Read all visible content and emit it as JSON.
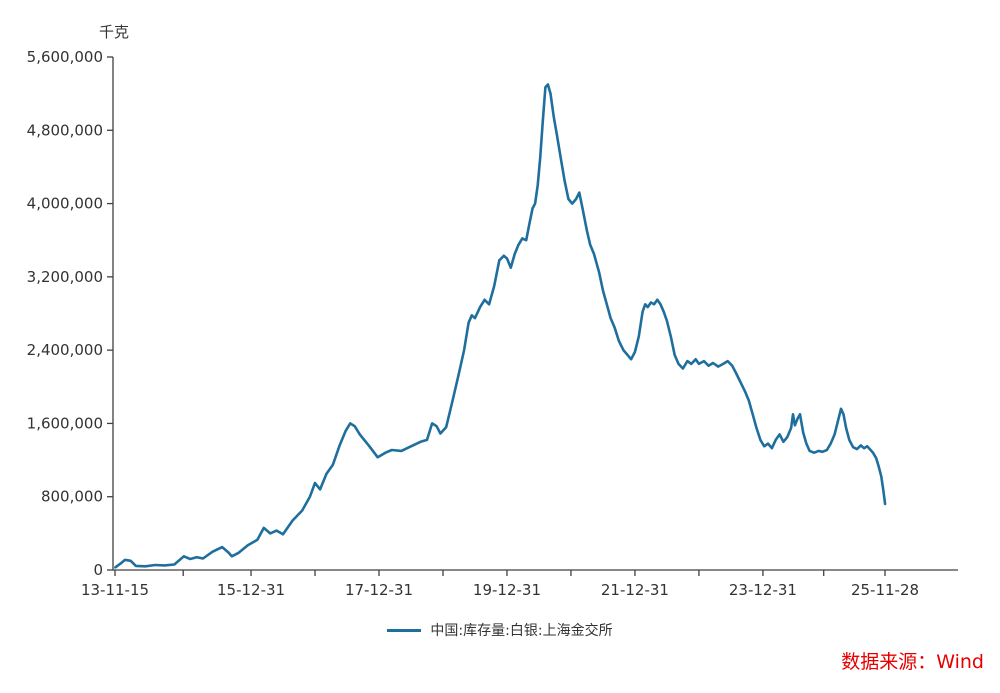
{
  "page": {
    "background": "#ffffff"
  },
  "source_note": {
    "text": "数据来源：Wind",
    "color": "#e60000"
  },
  "chart_data": {
    "type": "line",
    "title": "",
    "unit_label": "千克",
    "grid": false,
    "legend_position": "bottom-center",
    "axis_color": "#404040",
    "tick_label_color": "#333333",
    "ylim": [
      0,
      5600000
    ],
    "xlim": [
      2013.874,
      2025.908
    ],
    "y_ticks": [
      0,
      800000,
      1600000,
      2400000,
      3200000,
      4000000,
      4800000,
      5600000
    ],
    "y_tick_labels": [
      "0",
      "800,000",
      "1,600,000",
      "2,400,000",
      "3,200,000",
      "4,000,000",
      "4,800,000",
      "5,600,000"
    ],
    "x_ticks": [
      {
        "t": 2013.874,
        "label": "13-11-15"
      },
      {
        "t": 2016.0,
        "label": "15-12-31"
      },
      {
        "t": 2018.0,
        "label": "17-12-31"
      },
      {
        "t": 2020.0,
        "label": "19-12-31"
      },
      {
        "t": 2022.0,
        "label": "21-12-31"
      },
      {
        "t": 2024.0,
        "label": "23-12-31"
      },
      {
        "t": 2025.908,
        "label": "25-11-28"
      }
    ],
    "x_minor_ticks": [
      2014.94,
      2017.0,
      2019.0,
      2021.0,
      2023.0,
      2024.95
    ],
    "series": [
      {
        "name": "中国:库存量:白银:上海金交所",
        "color": "#1f6f9e",
        "points": [
          [
            2013.88,
            30000
          ],
          [
            2013.96,
            70000
          ],
          [
            2014.03,
            110000
          ],
          [
            2014.12,
            100000
          ],
          [
            2014.2,
            45000
          ],
          [
            2014.35,
            40000
          ],
          [
            2014.5,
            55000
          ],
          [
            2014.65,
            50000
          ],
          [
            2014.8,
            60000
          ],
          [
            2014.95,
            150000
          ],
          [
            2015.05,
            120000
          ],
          [
            2015.15,
            140000
          ],
          [
            2015.25,
            125000
          ],
          [
            2015.4,
            200000
          ],
          [
            2015.55,
            250000
          ],
          [
            2015.65,
            190000
          ],
          [
            2015.7,
            150000
          ],
          [
            2015.8,
            185000
          ],
          [
            2015.95,
            270000
          ],
          [
            2016.1,
            330000
          ],
          [
            2016.2,
            460000
          ],
          [
            2016.3,
            400000
          ],
          [
            2016.4,
            430000
          ],
          [
            2016.5,
            390000
          ],
          [
            2016.65,
            540000
          ],
          [
            2016.8,
            650000
          ],
          [
            2016.92,
            800000
          ],
          [
            2017.0,
            950000
          ],
          [
            2017.08,
            880000
          ],
          [
            2017.18,
            1050000
          ],
          [
            2017.28,
            1150000
          ],
          [
            2017.38,
            1350000
          ],
          [
            2017.48,
            1520000
          ],
          [
            2017.55,
            1600000
          ],
          [
            2017.62,
            1570000
          ],
          [
            2017.7,
            1480000
          ],
          [
            2017.85,
            1350000
          ],
          [
            2017.98,
            1230000
          ],
          [
            2018.1,
            1280000
          ],
          [
            2018.2,
            1310000
          ],
          [
            2018.35,
            1300000
          ],
          [
            2018.5,
            1350000
          ],
          [
            2018.65,
            1400000
          ],
          [
            2018.75,
            1420000
          ],
          [
            2018.83,
            1600000
          ],
          [
            2018.9,
            1570000
          ],
          [
            2018.96,
            1490000
          ],
          [
            2019.05,
            1560000
          ],
          [
            2019.15,
            1850000
          ],
          [
            2019.25,
            2150000
          ],
          [
            2019.33,
            2400000
          ],
          [
            2019.4,
            2700000
          ],
          [
            2019.45,
            2780000
          ],
          [
            2019.5,
            2750000
          ],
          [
            2019.58,
            2870000
          ],
          [
            2019.65,
            2950000
          ],
          [
            2019.72,
            2900000
          ],
          [
            2019.8,
            3100000
          ],
          [
            2019.88,
            3380000
          ],
          [
            2019.95,
            3430000
          ],
          [
            2020.0,
            3400000
          ],
          [
            2020.06,
            3300000
          ],
          [
            2020.12,
            3450000
          ],
          [
            2020.18,
            3550000
          ],
          [
            2020.24,
            3620000
          ],
          [
            2020.3,
            3600000
          ],
          [
            2020.35,
            3780000
          ],
          [
            2020.4,
            3950000
          ],
          [
            2020.44,
            4000000
          ],
          [
            2020.48,
            4200000
          ],
          [
            2020.52,
            4500000
          ],
          [
            2020.56,
            4900000
          ],
          [
            2020.6,
            5270000
          ],
          [
            2020.64,
            5300000
          ],
          [
            2020.68,
            5200000
          ],
          [
            2020.73,
            4950000
          ],
          [
            2020.78,
            4750000
          ],
          [
            2020.84,
            4500000
          ],
          [
            2020.9,
            4250000
          ],
          [
            2020.96,
            4050000
          ],
          [
            2021.02,
            4000000
          ],
          [
            2021.08,
            4050000
          ],
          [
            2021.13,
            4120000
          ],
          [
            2021.18,
            3950000
          ],
          [
            2021.25,
            3700000
          ],
          [
            2021.3,
            3550000
          ],
          [
            2021.36,
            3450000
          ],
          [
            2021.44,
            3250000
          ],
          [
            2021.5,
            3050000
          ],
          [
            2021.56,
            2900000
          ],
          [
            2021.62,
            2750000
          ],
          [
            2021.68,
            2650000
          ],
          [
            2021.75,
            2500000
          ],
          [
            2021.82,
            2400000
          ],
          [
            2021.88,
            2350000
          ],
          [
            2021.94,
            2300000
          ],
          [
            2022.0,
            2380000
          ],
          [
            2022.06,
            2550000
          ],
          [
            2022.12,
            2820000
          ],
          [
            2022.16,
            2900000
          ],
          [
            2022.2,
            2870000
          ],
          [
            2022.25,
            2920000
          ],
          [
            2022.3,
            2900000
          ],
          [
            2022.35,
            2950000
          ],
          [
            2022.4,
            2900000
          ],
          [
            2022.45,
            2820000
          ],
          [
            2022.5,
            2720000
          ],
          [
            2022.56,
            2550000
          ],
          [
            2022.62,
            2350000
          ],
          [
            2022.68,
            2250000
          ],
          [
            2022.75,
            2200000
          ],
          [
            2022.82,
            2280000
          ],
          [
            2022.88,
            2250000
          ],
          [
            2022.95,
            2300000
          ],
          [
            2023.0,
            2250000
          ],
          [
            2023.08,
            2280000
          ],
          [
            2023.15,
            2230000
          ],
          [
            2023.22,
            2260000
          ],
          [
            2023.3,
            2220000
          ],
          [
            2023.38,
            2250000
          ],
          [
            2023.45,
            2280000
          ],
          [
            2023.52,
            2230000
          ],
          [
            2023.58,
            2150000
          ],
          [
            2023.65,
            2050000
          ],
          [
            2023.72,
            1950000
          ],
          [
            2023.78,
            1850000
          ],
          [
            2023.84,
            1700000
          ],
          [
            2023.9,
            1550000
          ],
          [
            2023.96,
            1420000
          ],
          [
            2024.02,
            1350000
          ],
          [
            2024.08,
            1380000
          ],
          [
            2024.14,
            1330000
          ],
          [
            2024.2,
            1420000
          ],
          [
            2024.26,
            1480000
          ],
          [
            2024.32,
            1400000
          ],
          [
            2024.38,
            1450000
          ],
          [
            2024.44,
            1550000
          ],
          [
            2024.47,
            1700000
          ],
          [
            2024.5,
            1580000
          ],
          [
            2024.54,
            1650000
          ],
          [
            2024.58,
            1700000
          ],
          [
            2024.63,
            1500000
          ],
          [
            2024.68,
            1380000
          ],
          [
            2024.73,
            1300000
          ],
          [
            2024.8,
            1280000
          ],
          [
            2024.87,
            1300000
          ],
          [
            2024.93,
            1290000
          ],
          [
            2025.0,
            1310000
          ],
          [
            2025.06,
            1380000
          ],
          [
            2025.12,
            1480000
          ],
          [
            2025.17,
            1620000
          ],
          [
            2025.22,
            1760000
          ],
          [
            2025.26,
            1700000
          ],
          [
            2025.3,
            1550000
          ],
          [
            2025.35,
            1420000
          ],
          [
            2025.41,
            1340000
          ],
          [
            2025.47,
            1320000
          ],
          [
            2025.53,
            1360000
          ],
          [
            2025.58,
            1330000
          ],
          [
            2025.63,
            1350000
          ],
          [
            2025.67,
            1320000
          ],
          [
            2025.72,
            1280000
          ],
          [
            2025.77,
            1220000
          ],
          [
            2025.81,
            1130000
          ],
          [
            2025.85,
            1020000
          ],
          [
            2025.88,
            880000
          ],
          [
            2025.91,
            720000
          ]
        ]
      }
    ]
  }
}
